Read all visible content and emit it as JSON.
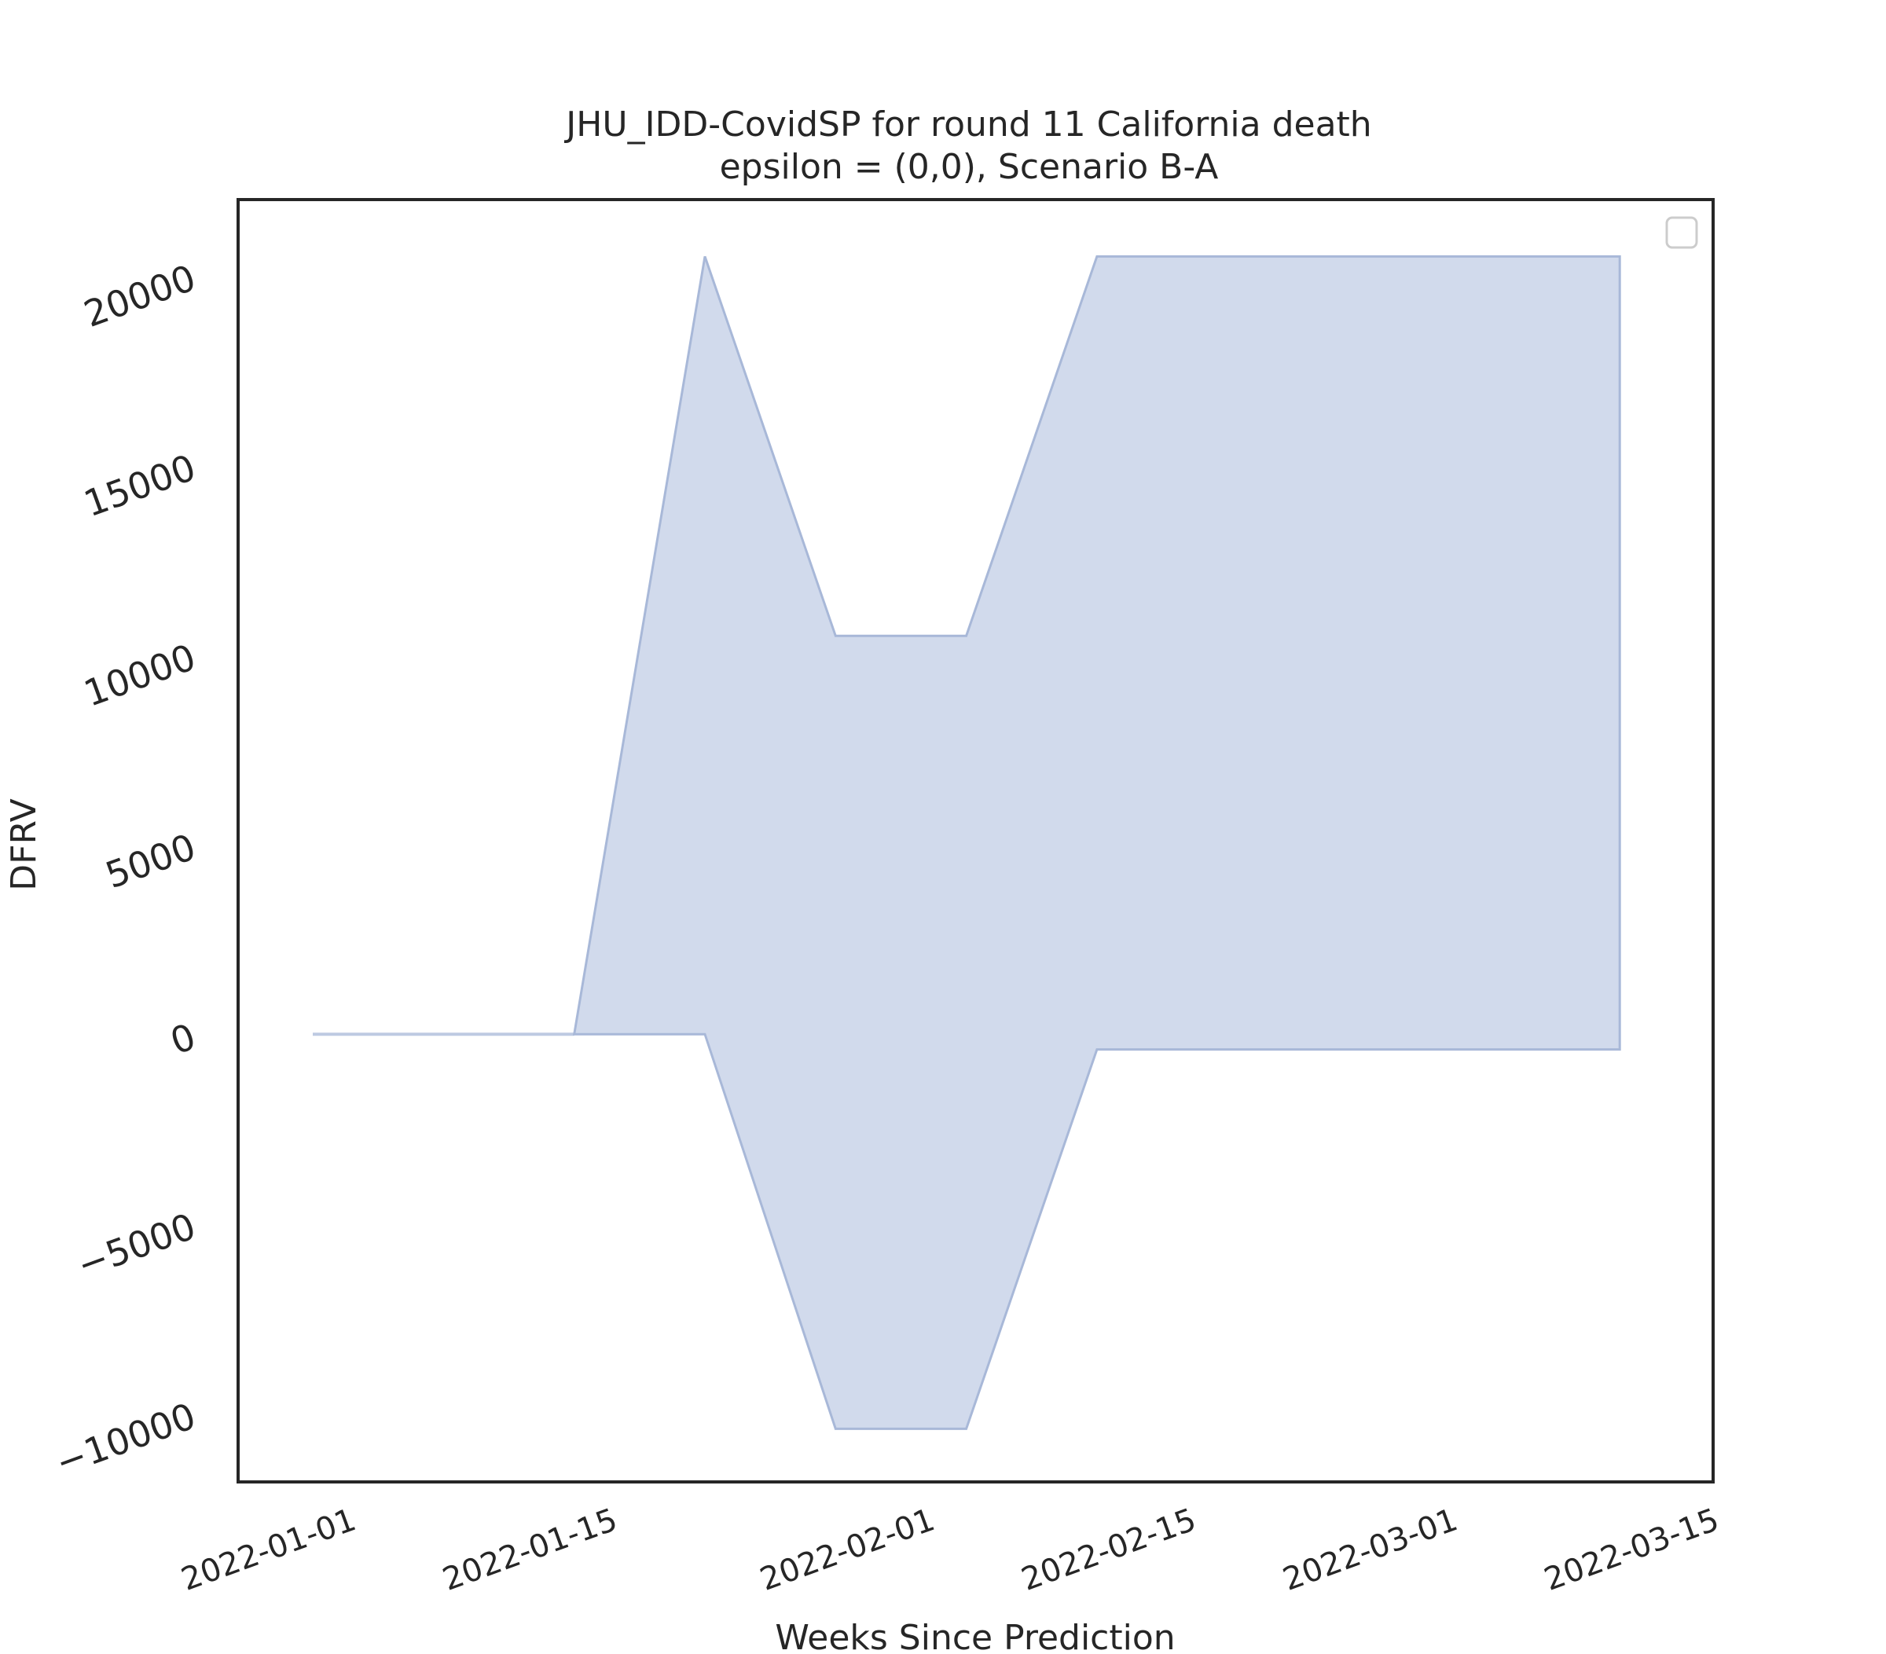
{
  "chart_data": {
    "type": "area",
    "title": "JHU_IDD-CovidSP for round 11 California death",
    "subtitle": "epsilon = (0,0), Scenario B-A",
    "xlabel": "Weeks Since Prediction",
    "ylabel": "DFRV",
    "x_ticks": [
      "2022-01-01",
      "2022-01-15",
      "2022-02-01",
      "2022-02-15",
      "2022-03-01",
      "2022-03-15"
    ],
    "y_ticks": [
      -10000,
      -5000,
      0,
      5000,
      10000,
      15000,
      20000
    ],
    "y_tick_labels": [
      "−10000",
      "−5000",
      "0",
      "5000",
      "10000",
      "15000",
      "20000"
    ],
    "xlim": [
      "2021-12-26",
      "2022-03-15"
    ],
    "ylim": [
      -11800,
      22000
    ],
    "grid": false,
    "legend": {
      "placement": "top-right",
      "entries": []
    },
    "colors": {
      "fill": "#b4c4e0",
      "edge": "#a8b8d8",
      "axes": "#262626"
    },
    "series": [
      {
        "dates": [
          "2021-12-30",
          "2022-01-06",
          "2022-01-13",
          "2022-01-20",
          "2022-01-27",
          "2022-02-03",
          "2022-02-10",
          "2022-02-17",
          "2022-02-24",
          "2022-03-03",
          "2022-03-10"
        ],
        "lower": [
          0,
          0,
          0,
          0,
          -10400,
          -10400,
          -400,
          -400,
          -400,
          -400,
          -400
        ],
        "upper": [
          0,
          0,
          0,
          20500,
          10500,
          10500,
          20500,
          20500,
          20500,
          20500,
          20500
        ],
        "band_start": "2022-01-13",
        "lower_at_band_start": 0,
        "upper_at_band_start": 0
      }
    ]
  }
}
